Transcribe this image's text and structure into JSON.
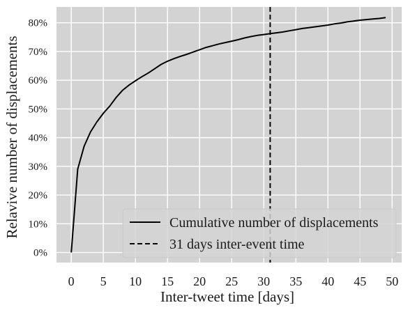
{
  "chart_data": {
    "type": "line",
    "xlabel": "Inter-tweet time [days]",
    "ylabel": "Relavive number of displacements",
    "xlim": [
      -2.3,
      51.5
    ],
    "ylim": [
      -3.5,
      85.5
    ],
    "x_ticks": [
      0,
      5,
      10,
      15,
      20,
      25,
      30,
      35,
      40,
      45,
      50
    ],
    "x_tick_labels": [
      "0",
      "5",
      "10",
      "15",
      "20",
      "25",
      "30",
      "35",
      "40",
      "45",
      "50"
    ],
    "y_ticks": [
      0,
      10,
      20,
      30,
      40,
      50,
      60,
      70,
      80
    ],
    "y_tick_labels": [
      "0%",
      "10%",
      "20%",
      "30%",
      "40%",
      "50%",
      "60%",
      "70%",
      "80%"
    ],
    "grid": true,
    "background": "#d3d3d3",
    "legend_position": "lower-right",
    "series": [
      {
        "name": "Cumulative number of displacements",
        "style": "solid",
        "color": "#000000",
        "x": [
          0,
          1,
          2,
          3,
          4,
          5,
          6,
          7,
          8,
          9,
          10,
          11,
          12,
          13,
          14,
          15,
          16,
          17,
          18,
          19,
          20,
          21,
          22,
          23,
          24,
          25,
          26,
          27,
          28,
          29,
          30,
          31,
          32,
          33,
          34,
          35,
          36,
          37,
          38,
          39,
          40,
          41,
          42,
          43,
          44,
          45,
          46,
          47,
          48,
          49
        ],
        "y": [
          0,
          29,
          37,
          42,
          45.5,
          48.5,
          51,
          54,
          56.5,
          58.3,
          59.8,
          61.2,
          62.5,
          64,
          65.5,
          66.6,
          67.5,
          68.3,
          69,
          69.8,
          70.6,
          71.4,
          72,
          72.6,
          73.1,
          73.6,
          74.1,
          74.7,
          75.2,
          75.6,
          75.9,
          76.2,
          76.5,
          76.8,
          77.2,
          77.6,
          78,
          78.3,
          78.6,
          78.9,
          79.2,
          79.6,
          79.9,
          80.3,
          80.6,
          80.9,
          81.1,
          81.3,
          81.5,
          81.8
        ]
      },
      {
        "name": "31 days inter-event time",
        "style": "dashed",
        "color": "#000000",
        "x_value": 31
      }
    ]
  }
}
